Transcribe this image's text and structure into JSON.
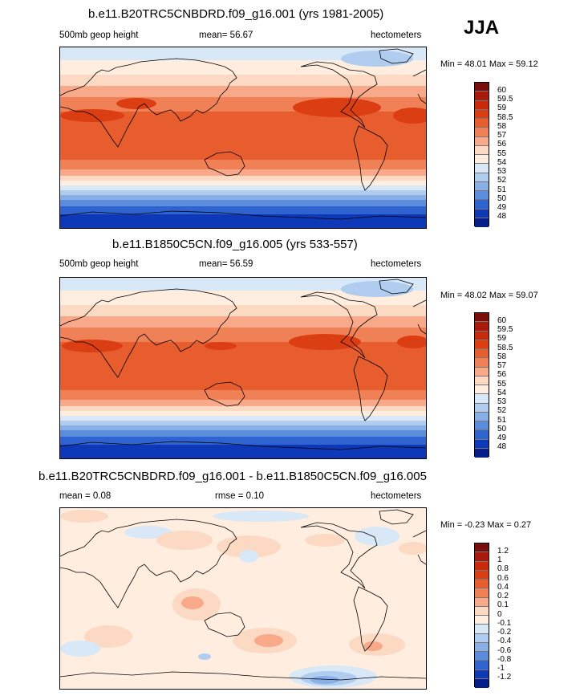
{
  "season": "JJA",
  "panels": [
    {
      "title": "b.e11.B20TRC5CNBDRD.f09_g16.001 (yrs 1981-2005)",
      "left_label": "500mb geop height",
      "center_label": "mean=  56.67",
      "units": "hectometers",
      "stats": "Min =  48.01 Max =  59.12",
      "legend": {
        "levels": [
          "60",
          "59.5",
          "59",
          "58.5",
          "58",
          "57",
          "56",
          "55",
          "54",
          "53",
          "52",
          "51",
          "50",
          "49",
          "48"
        ]
      }
    },
    {
      "title": "b.e11.B1850C5CN.f09_g16.005 (yrs 533-557)",
      "left_label": "500mb geop height",
      "center_label": "mean=  56.59",
      "units": "hectometers",
      "stats": "Min =  48.02 Max =  59.07",
      "legend": {
        "levels": [
          "60",
          "59.5",
          "59",
          "58.5",
          "58",
          "57",
          "56",
          "55",
          "54",
          "53",
          "52",
          "51",
          "50",
          "49",
          "48"
        ]
      }
    },
    {
      "title": "b.e11.B20TRC5CNBDRD.f09_g16.001 - b.e11.B1850C5CN.f09_g16.005",
      "left_label": "mean =    0.08",
      "center_label": "rmse =    0.10",
      "units": "hectometers",
      "stats": "Min =  -0.23 Max =    0.27",
      "legend": {
        "levels": [
          "1.2",
          "1",
          "0.8",
          "0.6",
          "0.4",
          "0.2",
          "0.1",
          "0",
          "-0.1",
          "-0.2",
          "-0.4",
          "-0.6",
          "-0.8",
          "-1",
          "-1.2"
        ]
      }
    }
  ],
  "colors": {
    "scale": [
      "#7a0c0c",
      "#a81a0c",
      "#c82a0c",
      "#db3e12",
      "#e85d2e",
      "#f08055",
      "#f8a98a",
      "#fbd9c3",
      "#ffeedf",
      "#d8e8f7",
      "#b0cdef",
      "#88b0e6",
      "#5b8ddc",
      "#2f63cf",
      "#0d39b8",
      "#061d8a"
    ],
    "land_outline": "#000000"
  }
}
